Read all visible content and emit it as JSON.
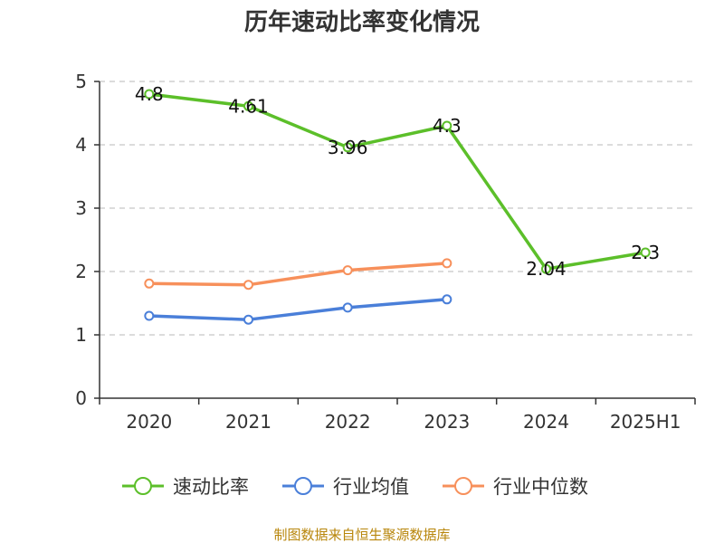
{
  "chart_data": {
    "type": "line",
    "title": "历年速动比率变化情况",
    "categories": [
      "2020",
      "2021",
      "2022",
      "2023",
      "2024",
      "2025H1"
    ],
    "ylim": [
      0,
      5
    ],
    "y_ticks": [
      0,
      1,
      2,
      3,
      4,
      5
    ],
    "grid": true,
    "legend_position": "bottom",
    "series": [
      {
        "name": "速动比率",
        "color": "#5cbf2a",
        "values": [
          4.8,
          4.61,
          3.96,
          4.3,
          2.04,
          2.3
        ],
        "labels": [
          "4.8",
          "4.61",
          "3.96",
          "4.3",
          "2.04",
          "2.3"
        ]
      },
      {
        "name": "行业均值",
        "color": "#4a7fd9",
        "values": [
          1.3,
          1.24,
          1.43,
          1.56,
          null,
          null
        ]
      },
      {
        "name": "行业中位数",
        "color": "#f7905b",
        "values": [
          1.81,
          1.79,
          2.02,
          2.13,
          null,
          null
        ]
      }
    ]
  },
  "source": "制图数据来自恒生聚源数据库"
}
